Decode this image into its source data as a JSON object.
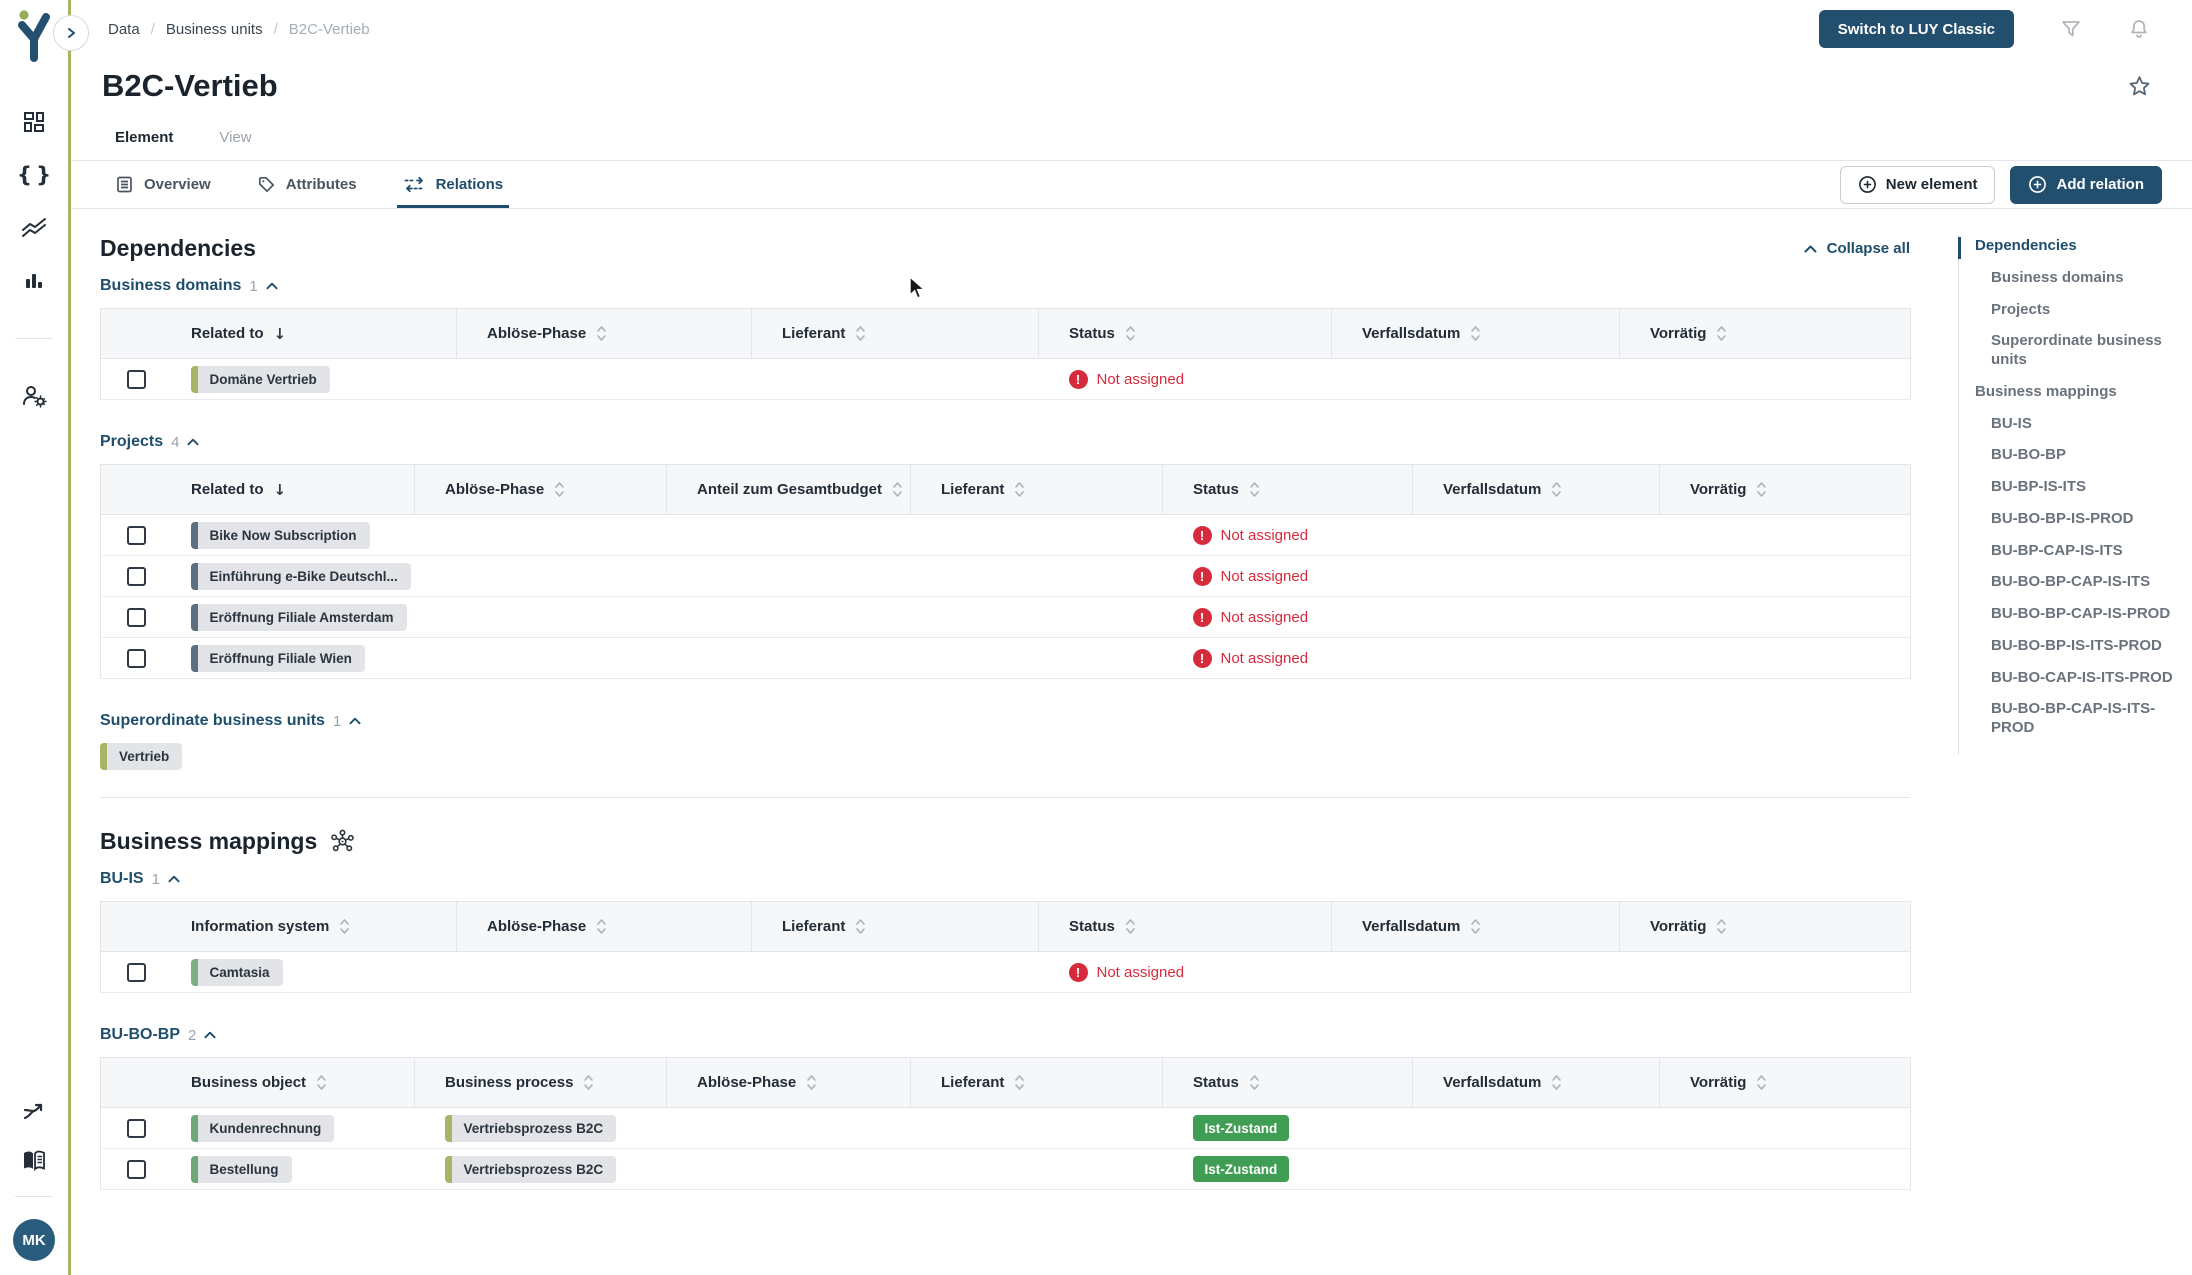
{
  "breadcrumb": {
    "items": [
      "Data",
      "Business units",
      "B2C-Vertieb"
    ],
    "separator": "/"
  },
  "topbar": {
    "switch_button": "Switch to LUY Classic",
    "icons": [
      "filter-icon",
      "bell-icon"
    ]
  },
  "page": {
    "title": "B2C-Vertieb",
    "star_icon": "star-icon"
  },
  "primary_tabs": [
    {
      "label": "Element",
      "active": true
    },
    {
      "label": "View",
      "active": false
    }
  ],
  "sub_tabs": [
    {
      "label": "Overview",
      "icon": "document-icon",
      "active": false
    },
    {
      "label": "Attributes",
      "icon": "tag-icon",
      "active": false
    },
    {
      "label": "Relations",
      "icon": "relations-icon",
      "active": true
    }
  ],
  "toolbar": {
    "new_element": "New element",
    "add_relation": "Add relation",
    "plus_icon": "plus-circle-icon"
  },
  "sidebar": {
    "logo": "luy-logo",
    "top_icons": [
      "dashboard-icon",
      "code-icon",
      "reports-icon",
      "bar-chart-icon"
    ],
    "middle_icons": [
      "user-settings-icon"
    ],
    "bottom_icons": [
      "flow-split-icon",
      "documentation-icon"
    ],
    "avatar_initials": "MK"
  },
  "content": {
    "dependencies": {
      "title": "Dependencies",
      "collapse_all": "Collapse all"
    },
    "business_mappings": {
      "title": "Business mappings",
      "icon": "network-icon"
    },
    "sections": [
      {
        "kind": "table",
        "heading": "Business domains",
        "count": "1",
        "layout": "six",
        "columns": [
          {
            "label": "Related to",
            "sorted": true
          },
          {
            "label": "Ablöse-Phase"
          },
          {
            "label": "Lieferant"
          },
          {
            "label": "Status"
          },
          {
            "label": "Verfallsdatum"
          },
          {
            "label": "Vorrätig"
          }
        ],
        "rows": [
          {
            "cells": [
              {
                "tag": "Domäne Vertrieb",
                "bar": "#a9b566"
              },
              null,
              null,
              {
                "error": "Not assigned"
              },
              null,
              null
            ]
          }
        ]
      },
      {
        "kind": "table",
        "heading": "Projects",
        "count": "4",
        "layout": "seven",
        "columns": [
          {
            "label": "Related to",
            "sorted": true
          },
          {
            "label": "Ablöse-Phase"
          },
          {
            "label": "Anteil zum Gesamtbudget"
          },
          {
            "label": "Lieferant"
          },
          {
            "label": "Status"
          },
          {
            "label": "Verfallsdatum"
          },
          {
            "label": "Vorrätig"
          }
        ],
        "rows": [
          {
            "cells": [
              {
                "tag": "Bike Now Subscription",
                "bar": "#5d6f7e"
              },
              null,
              null,
              null,
              {
                "error": "Not assigned"
              },
              null,
              null
            ]
          },
          {
            "cells": [
              {
                "tag": "Einführung e-Bike Deutschl...",
                "bar": "#5d6f7e"
              },
              null,
              null,
              null,
              {
                "error": "Not assigned"
              },
              null,
              null
            ]
          },
          {
            "cells": [
              {
                "tag": "Eröffnung Filiale Amsterdam",
                "bar": "#5d6f7e"
              },
              null,
              null,
              null,
              {
                "error": "Not assigned"
              },
              null,
              null
            ]
          },
          {
            "cells": [
              {
                "tag": "Eröffnung Filiale Wien",
                "bar": "#5d6f7e"
              },
              null,
              null,
              null,
              {
                "error": "Not assigned"
              },
              null,
              null
            ]
          }
        ]
      },
      {
        "kind": "tags",
        "heading": "Superordinate business units",
        "count": "1",
        "tags": [
          {
            "tag": "Vertrieb",
            "bar": "#a9b566"
          }
        ]
      },
      {
        "kind": "table",
        "heading": "BU-IS",
        "count": "1",
        "layout": "six",
        "columns": [
          {
            "label": "Information system"
          },
          {
            "label": "Ablöse-Phase"
          },
          {
            "label": "Lieferant"
          },
          {
            "label": "Status"
          },
          {
            "label": "Verfallsdatum"
          },
          {
            "label": "Vorrätig"
          }
        ],
        "rows": [
          {
            "cells": [
              {
                "tag": "Camtasia",
                "bar": "#7fae83"
              },
              null,
              null,
              {
                "error": "Not assigned"
              },
              null,
              null
            ]
          }
        ]
      },
      {
        "kind": "table",
        "heading": "BU-BO-BP",
        "count": "2",
        "layout": "seven",
        "columns": [
          {
            "label": "Business object"
          },
          {
            "label": "Business process"
          },
          {
            "label": "Ablöse-Phase"
          },
          {
            "label": "Lieferant"
          },
          {
            "label": "Status"
          },
          {
            "label": "Verfallsdatum"
          },
          {
            "label": "Vorrätig"
          }
        ],
        "rows": [
          {
            "cells": [
              {
                "tag": "Kundenrechnung",
                "bar": "#6fa878"
              },
              {
                "tag": "Vertriebsprozess B2C",
                "bar": "#a9b566"
              },
              null,
              null,
              {
                "badge": "Ist-Zustand"
              },
              null,
              null
            ]
          },
          {
            "cells": [
              {
                "tag": "Bestellung",
                "bar": "#6fa878"
              },
              {
                "tag": "Vertriebsprozess B2C",
                "bar": "#a9b566"
              },
              null,
              null,
              {
                "badge": "Ist-Zustand"
              },
              null,
              null
            ]
          }
        ]
      }
    ]
  },
  "toc": {
    "items": [
      {
        "label": "Dependencies",
        "level": 0,
        "active": true
      },
      {
        "label": "Business domains",
        "level": 1
      },
      {
        "label": "Projects",
        "level": 1
      },
      {
        "label": "Superordinate business units",
        "level": 1
      },
      {
        "label": "Business mappings",
        "level": 0
      },
      {
        "label": "BU-IS",
        "level": 1
      },
      {
        "label": "BU-BO-BP",
        "level": 1
      },
      {
        "label": "BU-BP-IS-ITS",
        "level": 1
      },
      {
        "label": "BU-BO-BP-IS-PROD",
        "level": 1
      },
      {
        "label": "BU-BP-CAP-IS-ITS",
        "level": 1
      },
      {
        "label": "BU-BO-BP-CAP-IS-ITS",
        "level": 1
      },
      {
        "label": "BU-BO-BP-CAP-IS-PROD",
        "level": 1
      },
      {
        "label": "BU-BO-BP-IS-ITS-PROD",
        "level": 1
      },
      {
        "label": "BU-BO-CAP-IS-ITS-PROD",
        "level": 1
      },
      {
        "label": "BU-BO-BP-CAP-IS-ITS-PROD",
        "level": 1
      }
    ]
  },
  "colors": {
    "accent_navy": "#234f6e",
    "sidebar_line": "#a9b464",
    "error_red": "#d62b3d",
    "badge_green": "#3f9e53",
    "tag_olive": "#a9b566",
    "tag_slate": "#5d6f7e",
    "tag_green": "#6fa878",
    "tag_sage": "#7fae83"
  }
}
